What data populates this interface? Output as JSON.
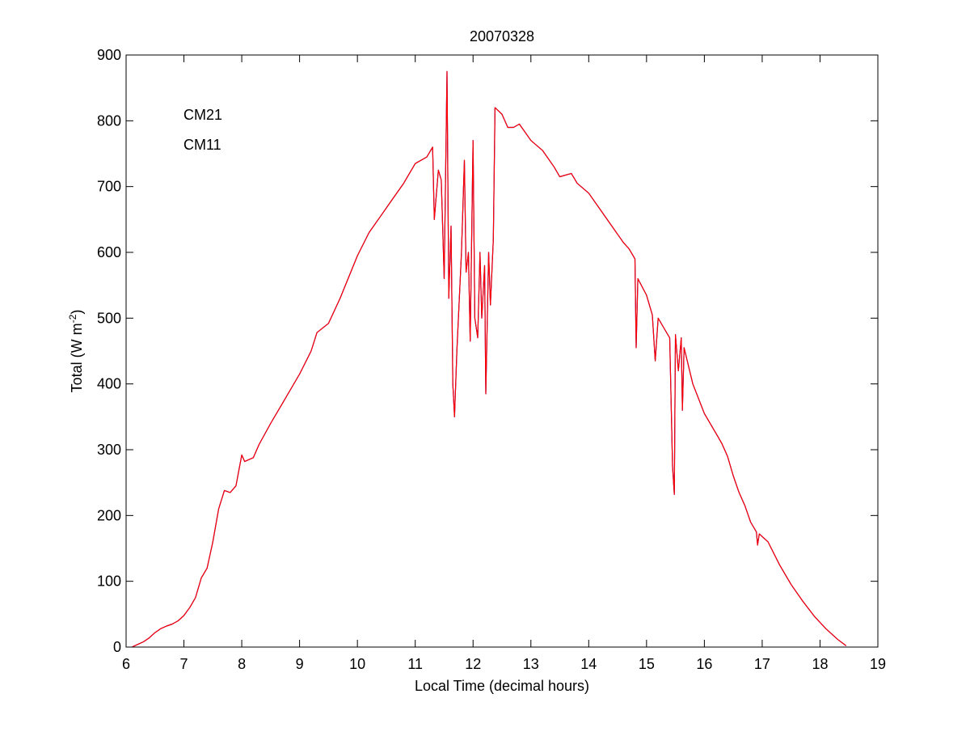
{
  "chart_data": {
    "type": "line",
    "title": "20070328",
    "xlabel": "Local Time (decimal hours)",
    "ylabel_main": "Total (W m",
    "ylabel_sup": "-2",
    "ylabel_close": ")",
    "xlim": [
      6,
      19
    ],
    "ylim": [
      0,
      900
    ],
    "xticks": [
      6,
      7,
      8,
      9,
      10,
      11,
      12,
      13,
      14,
      15,
      16,
      17,
      18,
      19
    ],
    "yticks": [
      0,
      100,
      200,
      300,
      400,
      500,
      600,
      700,
      800,
      900
    ],
    "grid": false,
    "legend_position": "top-left",
    "series": [
      {
        "name": "CM21",
        "color": "#0000cc",
        "points": [
          [
            6.1,
            0
          ],
          [
            6.2,
            4
          ],
          [
            6.3,
            8
          ],
          [
            6.4,
            14
          ],
          [
            6.5,
            22
          ],
          [
            6.6,
            28
          ],
          [
            6.7,
            32
          ],
          [
            6.8,
            35
          ],
          [
            6.9,
            40
          ],
          [
            7.0,
            48
          ],
          [
            7.1,
            60
          ],
          [
            7.2,
            75
          ],
          [
            7.3,
            105
          ],
          [
            7.4,
            120
          ],
          [
            7.5,
            160
          ],
          [
            7.6,
            210
          ],
          [
            7.7,
            238
          ],
          [
            7.8,
            235
          ],
          [
            7.9,
            245
          ],
          [
            8.0,
            292
          ],
          [
            8.05,
            282
          ],
          [
            8.2,
            288
          ],
          [
            8.3,
            308
          ],
          [
            8.5,
            340
          ],
          [
            8.7,
            370
          ],
          [
            9.0,
            415
          ],
          [
            9.2,
            450
          ],
          [
            9.3,
            478
          ],
          [
            9.5,
            492
          ],
          [
            9.7,
            530
          ],
          [
            10.0,
            595
          ],
          [
            10.2,
            630
          ],
          [
            10.4,
            655
          ],
          [
            10.6,
            680
          ],
          [
            10.8,
            705
          ],
          [
            11.0,
            735
          ],
          [
            11.2,
            745
          ],
          [
            11.3,
            760
          ],
          [
            11.33,
            650
          ],
          [
            11.4,
            725
          ],
          [
            11.45,
            710
          ],
          [
            11.5,
            560
          ],
          [
            11.55,
            875
          ],
          [
            11.58,
            530
          ],
          [
            11.62,
            640
          ],
          [
            11.65,
            400
          ],
          [
            11.68,
            350
          ],
          [
            11.72,
            450
          ],
          [
            11.8,
            600
          ],
          [
            11.85,
            740
          ],
          [
            11.88,
            570
          ],
          [
            11.92,
            600
          ],
          [
            11.95,
            465
          ],
          [
            12.0,
            770
          ],
          [
            12.03,
            500
          ],
          [
            12.08,
            470
          ],
          [
            12.12,
            600
          ],
          [
            12.15,
            500
          ],
          [
            12.2,
            580
          ],
          [
            12.22,
            385
          ],
          [
            12.27,
            600
          ],
          [
            12.3,
            520
          ],
          [
            12.35,
            620
          ],
          [
            12.38,
            820
          ],
          [
            12.5,
            810
          ],
          [
            12.6,
            790
          ],
          [
            12.7,
            790
          ],
          [
            12.8,
            795
          ],
          [
            13.0,
            770
          ],
          [
            13.2,
            755
          ],
          [
            13.4,
            730
          ],
          [
            13.5,
            715
          ],
          [
            13.7,
            720
          ],
          [
            13.8,
            705
          ],
          [
            14.0,
            690
          ],
          [
            14.2,
            665
          ],
          [
            14.4,
            640
          ],
          [
            14.6,
            615
          ],
          [
            14.7,
            605
          ],
          [
            14.8,
            590
          ],
          [
            14.82,
            455
          ],
          [
            14.85,
            560
          ],
          [
            15.0,
            535
          ],
          [
            15.1,
            505
          ],
          [
            15.15,
            435
          ],
          [
            15.2,
            500
          ],
          [
            15.3,
            485
          ],
          [
            15.4,
            470
          ],
          [
            15.45,
            275
          ],
          [
            15.48,
            232
          ],
          [
            15.5,
            475
          ],
          [
            15.55,
            420
          ],
          [
            15.6,
            470
          ],
          [
            15.62,
            360
          ],
          [
            15.65,
            455
          ],
          [
            15.8,
            400
          ],
          [
            16.0,
            355
          ],
          [
            16.2,
            325
          ],
          [
            16.3,
            310
          ],
          [
            16.4,
            290
          ],
          [
            16.5,
            260
          ],
          [
            16.6,
            235
          ],
          [
            16.7,
            215
          ],
          [
            16.8,
            190
          ],
          [
            16.9,
            175
          ],
          [
            16.92,
            155
          ],
          [
            16.95,
            172
          ],
          [
            17.1,
            160
          ],
          [
            17.3,
            125
          ],
          [
            17.5,
            95
          ],
          [
            17.7,
            70
          ],
          [
            17.9,
            47
          ],
          [
            18.1,
            28
          ],
          [
            18.3,
            12
          ],
          [
            18.45,
            2
          ]
        ]
      },
      {
        "name": "CM11",
        "color": "#ff0000",
        "points": [
          [
            6.1,
            0
          ],
          [
            6.2,
            4
          ],
          [
            6.3,
            8
          ],
          [
            6.4,
            14
          ],
          [
            6.5,
            22
          ],
          [
            6.6,
            28
          ],
          [
            6.7,
            32
          ],
          [
            6.8,
            35
          ],
          [
            6.9,
            40
          ],
          [
            7.0,
            48
          ],
          [
            7.1,
            60
          ],
          [
            7.2,
            75
          ],
          [
            7.3,
            105
          ],
          [
            7.4,
            120
          ],
          [
            7.5,
            160
          ],
          [
            7.6,
            210
          ],
          [
            7.7,
            238
          ],
          [
            7.8,
            235
          ],
          [
            7.9,
            245
          ],
          [
            8.0,
            292
          ],
          [
            8.05,
            282
          ],
          [
            8.2,
            288
          ],
          [
            8.3,
            308
          ],
          [
            8.5,
            340
          ],
          [
            8.7,
            370
          ],
          [
            9.0,
            415
          ],
          [
            9.2,
            450
          ],
          [
            9.3,
            478
          ],
          [
            9.5,
            492
          ],
          [
            9.7,
            530
          ],
          [
            10.0,
            595
          ],
          [
            10.2,
            630
          ],
          [
            10.4,
            655
          ],
          [
            10.6,
            680
          ],
          [
            10.8,
            705
          ],
          [
            11.0,
            735
          ],
          [
            11.2,
            745
          ],
          [
            11.3,
            760
          ],
          [
            11.33,
            650
          ],
          [
            11.4,
            725
          ],
          [
            11.45,
            710
          ],
          [
            11.5,
            560
          ],
          [
            11.55,
            875
          ],
          [
            11.58,
            530
          ],
          [
            11.62,
            640
          ],
          [
            11.65,
            400
          ],
          [
            11.68,
            350
          ],
          [
            11.72,
            450
          ],
          [
            11.8,
            600
          ],
          [
            11.85,
            740
          ],
          [
            11.88,
            570
          ],
          [
            11.92,
            600
          ],
          [
            11.95,
            465
          ],
          [
            12.0,
            770
          ],
          [
            12.03,
            500
          ],
          [
            12.08,
            470
          ],
          [
            12.12,
            600
          ],
          [
            12.15,
            500
          ],
          [
            12.2,
            580
          ],
          [
            12.22,
            385
          ],
          [
            12.27,
            600
          ],
          [
            12.3,
            520
          ],
          [
            12.35,
            620
          ],
          [
            12.38,
            820
          ],
          [
            12.5,
            810
          ],
          [
            12.6,
            790
          ],
          [
            12.7,
            790
          ],
          [
            12.8,
            795
          ],
          [
            13.0,
            770
          ],
          [
            13.2,
            755
          ],
          [
            13.4,
            730
          ],
          [
            13.5,
            715
          ],
          [
            13.7,
            720
          ],
          [
            13.8,
            705
          ],
          [
            14.0,
            690
          ],
          [
            14.2,
            665
          ],
          [
            14.4,
            640
          ],
          [
            14.6,
            615
          ],
          [
            14.7,
            605
          ],
          [
            14.8,
            590
          ],
          [
            14.82,
            455
          ],
          [
            14.85,
            560
          ],
          [
            15.0,
            535
          ],
          [
            15.1,
            505
          ],
          [
            15.15,
            435
          ],
          [
            15.2,
            500
          ],
          [
            15.3,
            485
          ],
          [
            15.4,
            470
          ],
          [
            15.45,
            275
          ],
          [
            15.48,
            232
          ],
          [
            15.5,
            475
          ],
          [
            15.55,
            420
          ],
          [
            15.6,
            470
          ],
          [
            15.62,
            360
          ],
          [
            15.65,
            455
          ],
          [
            15.8,
            400
          ],
          [
            16.0,
            355
          ],
          [
            16.2,
            325
          ],
          [
            16.3,
            310
          ],
          [
            16.4,
            290
          ],
          [
            16.5,
            260
          ],
          [
            16.6,
            235
          ],
          [
            16.7,
            215
          ],
          [
            16.8,
            190
          ],
          [
            16.9,
            175
          ],
          [
            16.92,
            155
          ],
          [
            16.95,
            172
          ],
          [
            17.1,
            160
          ],
          [
            17.3,
            125
          ],
          [
            17.5,
            95
          ],
          [
            17.7,
            70
          ],
          [
            17.9,
            47
          ],
          [
            18.1,
            28
          ],
          [
            18.3,
            12
          ],
          [
            18.45,
            2
          ]
        ]
      }
    ]
  }
}
